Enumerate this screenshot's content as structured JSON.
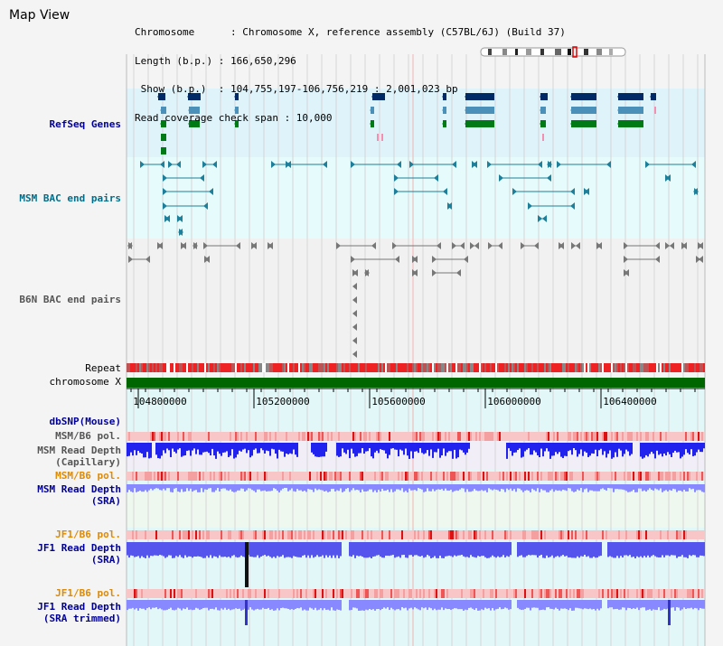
{
  "title": "Map View",
  "info": {
    "chromosome_line": "Chromosome      : Chromosome X, reference assembly (C57BL/6J) (Build 37)",
    "length_line": "Length (b.p.) : 166,650,296",
    "show_line": " Show (b.p.)  : 104,755,197-106,756,219 : 2,001,023 bp",
    "coverage_line": "Read coverage check span : 10,000"
  },
  "tracks": {
    "refseq": "RefSeq Genes",
    "msm_bac": "MSM BAC end pairs",
    "b6n_bac": "B6N BAC end pairs",
    "repeat": "Repeat",
    "chromosome": "chromosome X",
    "dbsnp": "dbSNP(Mouse)",
    "msm_pol_1": "MSM/B6 pol.",
    "msm_depth_cap_1": "MSM Read Depth",
    "msm_depth_cap_2": "(Capillary)",
    "msm_pol_2": "MSM/B6 pol.",
    "msm_depth_sra_1": "MSM Read Depth",
    "msm_depth_sra_2": "(SRA)",
    "jf1_pol_1": "JF1/B6 pol.",
    "jf1_depth_1": "JF1 Read Depth",
    "jf1_depth_2": "(SRA)",
    "jf1_pol_2": "JF1/B6 pol.",
    "jf1_trim_1": "JF1 Read Depth",
    "jf1_trim_2": "(SRA trimmed)"
  },
  "axis": {
    "ticks": [
      "104800000",
      "105200000",
      "105600000",
      "106000000",
      "106400000"
    ]
  },
  "colors": {
    "refseq_bg": "#dff3fb",
    "msm_bac_bg": "#e6fbfb",
    "b6n_bac_bg": "#f1f1f1",
    "depth_bg": "#e2f7f7",
    "navy": "#002a66",
    "steel": "#4a90b8",
    "green": "#007a14",
    "teal": "#1e7f9a",
    "gray_feature": "#777777",
    "chromosome_bar": "#006600",
    "depth_blue": "#2222ee",
    "depth_light": "#8888ff",
    "pol_pink": "#f4a0a0",
    "pol_red": "#ee2222"
  }
}
